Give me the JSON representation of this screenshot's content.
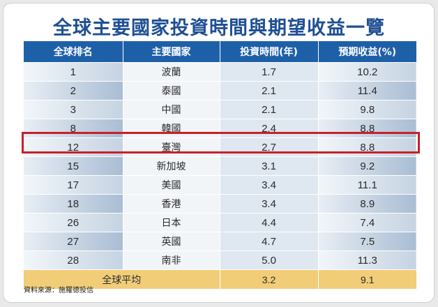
{
  "title": "全球主要國家投資時間與期望收益一覽",
  "headers": [
    "全球排名",
    "主要國家",
    "投資時間(年)",
    "預期收益(%)"
  ],
  "rows": [
    {
      "rank": "1",
      "country": "波蘭",
      "years": "1.7",
      "return": "10.2"
    },
    {
      "rank": "2",
      "country": "泰國",
      "years": "2.1",
      "return": "11.4"
    },
    {
      "rank": "3",
      "country": "中國",
      "years": "2.1",
      "return": "9.8"
    },
    {
      "rank": "8",
      "country": "韓國",
      "years": "2.4",
      "return": "8.8"
    },
    {
      "rank": "12",
      "country": "臺灣",
      "years": "2.7",
      "return": "8.8"
    },
    {
      "rank": "15",
      "country": "新加坡",
      "years": "3.1",
      "return": "9.2"
    },
    {
      "rank": "17",
      "country": "美國",
      "years": "3.4",
      "return": "11.1"
    },
    {
      "rank": "18",
      "country": "香港",
      "years": "3.4",
      "return": "8.9"
    },
    {
      "rank": "26",
      "country": "日本",
      "years": "4.4",
      "return": "7.4"
    },
    {
      "rank": "27",
      "country": "英國",
      "years": "4.7",
      "return": "7.5"
    },
    {
      "rank": "28",
      "country": "南非",
      "years": "5.0",
      "return": "11.3"
    }
  ],
  "average": {
    "label": "全球平均",
    "years": "3.2",
    "return": "9.1"
  },
  "highlighted_country": "臺灣",
  "source": "資料來源：施羅德投信",
  "colors": {
    "header": "#1e60a8",
    "title": "#1f4f93",
    "highlight_border": "#c8202a",
    "average_row": "#f2cd78"
  }
}
